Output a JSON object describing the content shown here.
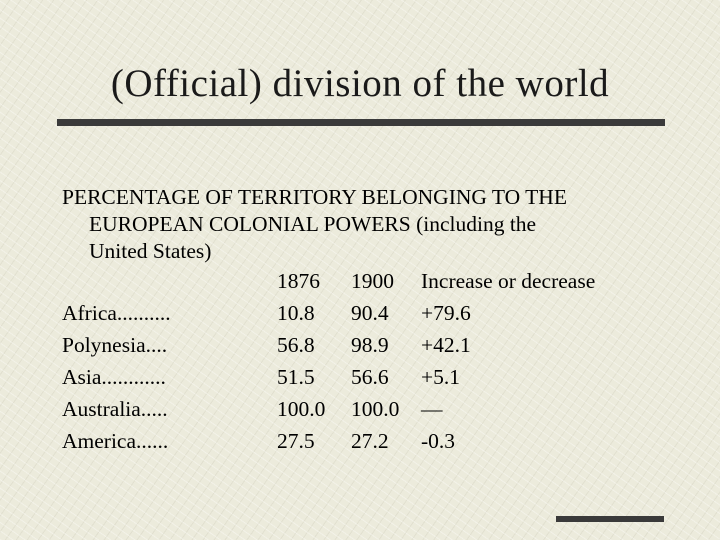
{
  "slide": {
    "title": "(Official) division of the world",
    "intro_lines": [
      "PERCENTAGE OF TERRITORY BELONGING TO THE",
      "EUROPEAN COLONIAL POWERS (including the",
      "United States)"
    ]
  },
  "table": {
    "headers": {
      "region": "",
      "y1876": "1876",
      "y1900": "1900",
      "change": "Increase or decrease"
    },
    "rows": [
      {
        "region": "Africa..........",
        "y1876": "10.8",
        "y1900": "90.4",
        "change": "+79.6"
      },
      {
        "region": "Polynesia....",
        "y1876": "56.8",
        "y1900": "98.9",
        "change": "+42.1"
      },
      {
        "region": "Asia............",
        "y1876": "51.5",
        "y1900": "56.6",
        "change": "+5.1"
      },
      {
        "region": "Australia.....",
        "y1876": "100.0",
        "y1900": "100.0",
        "change": "—"
      },
      {
        "region": "America......",
        "y1876": "27.5",
        "y1900": "27.2",
        "change": "-0.3"
      }
    ]
  },
  "colors": {
    "background": "#ecebdc",
    "rule": "#3a3a3a",
    "text": "#000000"
  }
}
